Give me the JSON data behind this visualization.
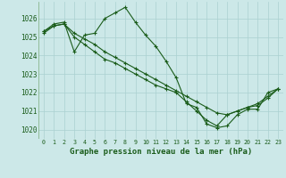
{
  "background_color": "#cce8e8",
  "grid_color": "#aad0d0",
  "line_color": "#1a5c1a",
  "xlabel": "Graphe pression niveau de la mer (hPa)",
  "xlabel_fontsize": 6.5,
  "ylim": [
    1019.5,
    1026.9
  ],
  "xlim": [
    -0.5,
    23.5
  ],
  "yticks": [
    1020,
    1021,
    1022,
    1023,
    1024,
    1025,
    1026
  ],
  "xticks": [
    0,
    1,
    2,
    3,
    4,
    5,
    6,
    7,
    8,
    9,
    10,
    11,
    12,
    13,
    14,
    15,
    16,
    17,
    18,
    19,
    20,
    21,
    22,
    23
  ],
  "series1": [
    1025.3,
    1025.7,
    1025.8,
    1024.2,
    1025.1,
    1025.2,
    1026.0,
    1026.3,
    1026.6,
    1025.8,
    1025.1,
    1024.5,
    1023.7,
    1022.8,
    1021.4,
    1021.2,
    1020.3,
    1020.1,
    1020.2,
    1020.8,
    1021.1,
    1021.1,
    1022.0,
    1022.2
  ],
  "series2": [
    1025.3,
    1025.6,
    1025.7,
    1025.2,
    1024.9,
    1024.6,
    1024.2,
    1023.9,
    1023.6,
    1023.3,
    1023.0,
    1022.7,
    1022.4,
    1022.1,
    1021.8,
    1021.5,
    1021.2,
    1020.9,
    1020.8,
    1021.0,
    1021.2,
    1021.4,
    1021.8,
    1022.2
  ],
  "series3": [
    1025.2,
    1025.6,
    1025.7,
    1025.0,
    1024.6,
    1024.2,
    1023.8,
    1023.6,
    1023.3,
    1023.0,
    1022.7,
    1022.4,
    1022.2,
    1022.0,
    1021.5,
    1021.0,
    1020.5,
    1020.2,
    1020.8,
    1021.0,
    1021.2,
    1021.3,
    1021.7,
    1022.2
  ]
}
